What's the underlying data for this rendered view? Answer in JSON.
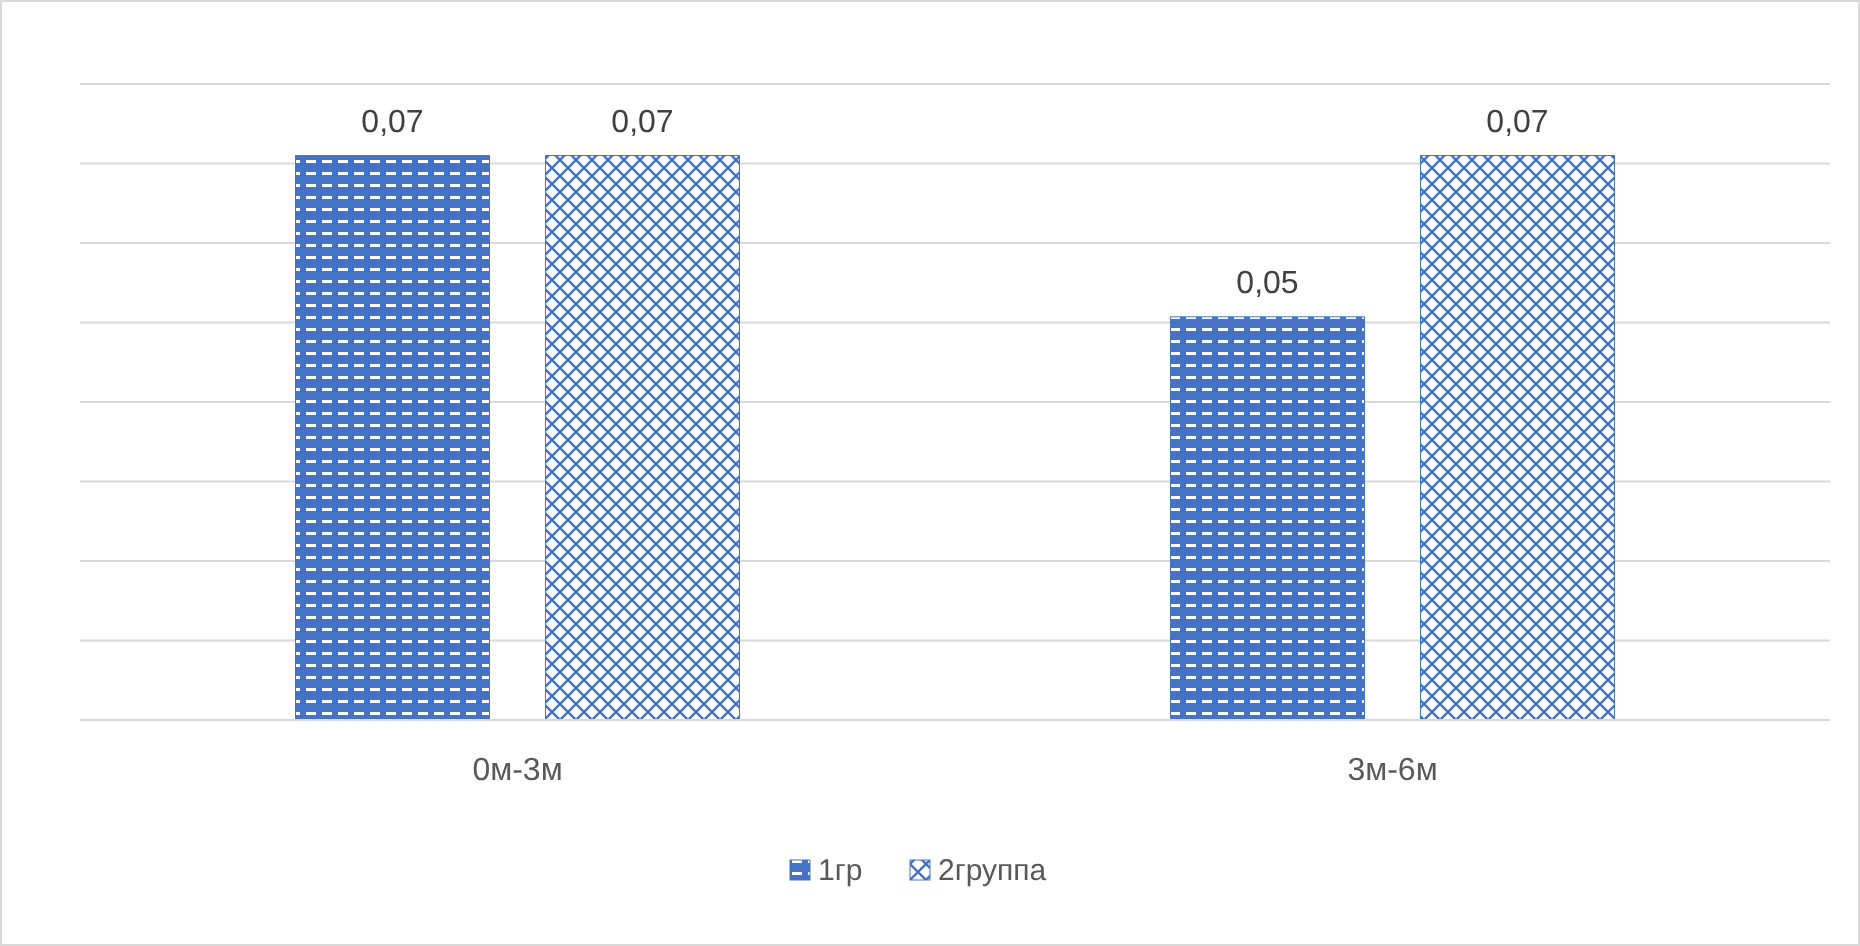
{
  "chart_data": {
    "type": "bar",
    "categories": [
      "0м-3м",
      "3м-6м"
    ],
    "series": [
      {
        "name": "1гр",
        "color": "#4472c4",
        "values": [
          0.07,
          0.05
        ],
        "value_labels": [
          "0,07",
          "0,05"
        ]
      },
      {
        "name": "2группа",
        "color": "#4472c4",
        "values": [
          0.07,
          0.07
        ],
        "value_labels": [
          "0,07",
          "0,07"
        ]
      }
    ],
    "grid": "y",
    "legend": "bottom",
    "tick_labels": "x"
  }
}
